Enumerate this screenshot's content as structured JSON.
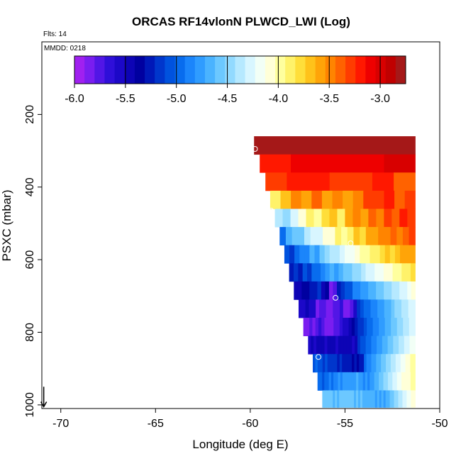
{
  "chart_data": {
    "type": "heatmap",
    "title": "ORCAS RF14vlonN PLWCD_LWI (Log)",
    "flights_label": "Flts: 14",
    "date_label": "MMDD: 0218",
    "xlabel": "Longitude (deg E)",
    "ylabel": "PSXC (mbar)",
    "xlim": [
      -71,
      -50
    ],
    "ylim": [
      1010,
      0
    ],
    "x_ticks": [
      -70,
      -65,
      -60,
      -55,
      -50
    ],
    "x_tick_labels": [
      "-70",
      "-65",
      "-60",
      "-55",
      "-50"
    ],
    "y_ticks": [
      200,
      400,
      600,
      800,
      1000
    ],
    "y_tick_labels": [
      "200",
      "400",
      "600",
      "800",
      "1000"
    ],
    "colorbar": {
      "range": [
        -6.0,
        -2.75
      ],
      "ticks": [
        -6.0,
        -5.5,
        -5.0,
        -4.5,
        -4.0,
        -3.5,
        -3.0
      ],
      "tick_labels": [
        "-6.0",
        "-5.5",
        "-5.0",
        "-4.5",
        "-4.0",
        "-3.5",
        "-3.0"
      ],
      "colors": [
        "#a020f0",
        "#7a1df0",
        "#5216e6",
        "#2f0fd9",
        "#1c08c8",
        "#0d04b5",
        "#0000a0",
        "#0018b8",
        "#0036cc",
        "#0052de",
        "#086cee",
        "#1b85fb",
        "#2f9cff",
        "#4ab3ff",
        "#6cc8ff",
        "#92daff",
        "#b6e9ff",
        "#d8f6ff",
        "#f2fff6",
        "#ffffd8",
        "#ffff9e",
        "#fff26a",
        "#ffde3a",
        "#ffc21a",
        "#ffa408",
        "#ff8400",
        "#ff6200",
        "#ff3c00",
        "#ff1800",
        "#ee0000",
        "#d80000",
        "#c00000",
        "#a51818"
      ]
    },
    "wedge": {
      "x_start": -51.3,
      "x_start_step": -0.75,
      "cell_width": 0.25,
      "levels": [
        {
          "p": 285,
          "x_end": -59.8,
          "values": [
            -2.8
          ]
        },
        {
          "p": 335,
          "x_end": -59.5,
          "values": [
            -3.15,
            -3.1,
            -3.05,
            -3.1,
            -3.0
          ]
        },
        {
          "p": 385,
          "x_end": -59.2,
          "values": [
            -3.25,
            -3.2,
            -3.15,
            -3.3,
            -3.25,
            -3.2,
            -3.35
          ]
        },
        {
          "p": 435,
          "x_end": -58.95,
          "values": [
            -3.85,
            -3.7,
            -3.5,
            -3.6,
            -3.4,
            -3.55,
            -3.45,
            -3.6,
            -3.5,
            -3.3,
            -3.25,
            -3.2,
            -3.35,
            -3.3
          ]
        },
        {
          "p": 485,
          "x_end": -58.7,
          "values": [
            -4.4,
            -4.5,
            -4.25,
            -4.1,
            -3.9,
            -3.95,
            -3.8,
            -3.7,
            -3.85,
            -3.6,
            -3.5,
            -3.55,
            -3.4,
            -3.45,
            -3.3,
            -3.35,
            -3.2,
            -3.25
          ]
        },
        {
          "p": 535,
          "x_end": -58.45,
          "values": [
            -5.0,
            -4.7,
            -4.6,
            -4.55,
            -4.35,
            -4.3,
            -4.25,
            -4.1,
            -4.05,
            -3.9,
            -3.95,
            -3.85,
            -3.7,
            -3.75,
            -3.6,
            -3.55,
            -3.5,
            -3.45,
            -3.4,
            -3.5,
            -3.35,
            -3.3
          ]
        },
        {
          "p": 585,
          "x_end": -58.2,
          "values": [
            -5.1,
            -5.2,
            -5.0,
            -4.9,
            -4.85,
            -4.7,
            -4.75,
            -4.55,
            -4.5,
            -4.4,
            -4.35,
            -4.25,
            -4.2,
            -4.15,
            -4.05,
            -4.0,
            -3.95,
            -3.9,
            -3.85,
            -3.8,
            -3.7,
            -3.75,
            -3.65,
            -3.6,
            -3.55,
            -3.6
          ]
        },
        {
          "p": 635,
          "x_end": -57.95,
          "values": [
            -5.3,
            -5.2,
            -5.25,
            -5.1,
            -5.15,
            -5.0,
            -4.95,
            -4.85,
            -4.8,
            -4.7,
            -4.75,
            -4.65,
            -4.6,
            -4.55,
            -4.5,
            -4.45,
            -4.35,
            -4.3,
            -4.25,
            -4.2,
            -4.15,
            -4.1,
            -4.05,
            -4.0,
            -3.95,
            -3.9,
            -3.85,
            -3.8
          ]
        },
        {
          "p": 685,
          "x_end": -57.7,
          "values": [
            -5.45,
            -5.5,
            -5.4,
            -5.35,
            -5.3,
            -5.25,
            -5.2,
            -5.5,
            -5.4,
            -5.9,
            -5.8,
            -5.3,
            -5.15,
            -5.1,
            -5.05,
            -4.9,
            -4.85,
            -4.8,
            -4.75,
            -4.7,
            -4.65,
            -4.6,
            -4.55,
            -4.5,
            -4.45,
            -4.4,
            -4.35,
            -4.3,
            -4.25,
            -4.2,
            -4.1
          ]
        },
        {
          "p": 735,
          "x_end": -57.45,
          "values": [
            -5.55,
            -5.6,
            -5.5,
            -5.55,
            -5.6,
            -5.85,
            -5.8,
            -5.75,
            -5.85,
            -5.9,
            -5.8,
            -5.75,
            -5.7,
            -5.9,
            -5.85,
            -5.75,
            -5.6,
            -5.2,
            -5.1,
            -5.0,
            -4.95,
            -4.9,
            -4.85,
            -4.8,
            -4.75,
            -4.7,
            -4.65,
            -4.6,
            -4.5,
            -4.45,
            -4.4,
            -4.35,
            -4.3,
            -4.25
          ]
        },
        {
          "p": 785,
          "x_end": -57.2,
          "values": [
            -5.85,
            -5.9,
            -5.8,
            -5.85,
            -5.75,
            -5.7,
            -5.8,
            -5.85,
            -5.9,
            -5.85,
            -5.8,
            -5.75,
            -5.7,
            -5.6,
            -5.55,
            -5.5,
            -5.4,
            -5.3,
            -5.2,
            -5.15,
            -5.1,
            -5.0,
            -4.95,
            -4.9,
            -4.85,
            -4.8,
            -4.75,
            -4.7,
            -4.65,
            -4.6,
            -4.55,
            -4.5,
            -4.45,
            -4.4,
            -4.35,
            -4.3,
            -4.25
          ]
        },
        {
          "p": 835,
          "x_end": -56.95,
          "values": [
            -5.55,
            -5.5,
            -5.55,
            -5.5,
            -5.45,
            -5.5,
            -5.55,
            -5.5,
            -5.45,
            -5.5,
            -5.55,
            -5.5,
            -5.45,
            -5.5,
            -5.45,
            -5.5,
            -5.55,
            -5.5,
            -5.2,
            -5.1,
            -5.05,
            -5.0,
            -4.95,
            -4.9,
            -4.85,
            -4.8,
            -4.75,
            -4.7,
            -4.65,
            -4.6,
            -4.55,
            -4.5,
            -4.45,
            -4.4,
            -4.35,
            -4.3,
            -4.25,
            -4.2,
            -4.15
          ]
        },
        {
          "p": 885,
          "x_end": -56.7,
          "values": [
            -5.05,
            -5.0,
            -5.05,
            -5.1,
            -5.15,
            -5.1,
            -5.15,
            -5.2,
            -5.15,
            -5.2,
            -5.25,
            -5.2,
            -5.25,
            -5.3,
            -5.25,
            -5.3,
            -5.35,
            -5.3,
            -5.35,
            -5.3,
            -5.25,
            -5.0,
            -4.9,
            -4.85,
            -4.8,
            -4.75,
            -4.7,
            -4.65,
            -4.6,
            -4.55,
            -4.5,
            -4.45,
            -4.4,
            -4.35,
            -4.3,
            -4.25,
            -4.2,
            -4.15,
            -4.1,
            -4.05,
            -4.0,
            -4.0
          ]
        },
        {
          "p": 935,
          "x_end": -56.45,
          "values": [
            -4.95,
            -5.0,
            -5.05,
            -5.0,
            -4.95,
            -4.9,
            -4.95,
            -4.9,
            -4.85,
            -4.8,
            -4.85,
            -4.8,
            -4.75,
            -4.8,
            -4.75,
            -4.8,
            -4.75,
            -4.7,
            -4.75,
            -4.8,
            -4.85,
            -4.8,
            -4.85,
            -4.8,
            -4.75,
            -4.7,
            -4.65,
            -4.6,
            -4.55,
            -4.5,
            -4.45,
            -4.4,
            -4.35,
            -4.3,
            -4.25,
            -4.2,
            -4.15,
            -4.1,
            -4.1,
            -4.05,
            -4.05,
            -4.0,
            -4.0
          ]
        },
        {
          "p": 985,
          "x_end": -56.2,
          "values": [
            -4.6,
            -4.55,
            -4.6,
            -4.55,
            -4.6,
            -4.65,
            -4.6,
            -4.65,
            -4.6,
            -4.55,
            -4.6,
            -4.55,
            -4.6,
            -4.55,
            -4.6,
            -4.65,
            -4.6,
            -4.65,
            -4.6,
            -4.65,
            -4.7,
            -4.65,
            -4.7,
            -4.65,
            -4.7,
            -4.75,
            -4.7,
            -4.75,
            -4.7,
            -4.75,
            -4.7,
            -4.65,
            -4.6,
            -4.55,
            -4.5,
            -4.45,
            -4.4,
            -4.35,
            -4.3,
            -4.25,
            -4.2,
            -4.15,
            -4.1,
            -4.05
          ]
        }
      ]
    },
    "markers": [
      {
        "x": -59.75,
        "y": 295
      },
      {
        "x": -58.9,
        "y": 465
      },
      {
        "x": -54.7,
        "y": 555
      },
      {
        "x": -55.5,
        "y": 705
      },
      {
        "x": -51.1,
        "y": 775
      },
      {
        "x": -56.4,
        "y": 868
      },
      {
        "x": -51.0,
        "y": 955
      },
      {
        "x": -57.0,
        "y": 995
      },
      {
        "x": -57.2,
        "y": 995
      },
      {
        "x": -57.4,
        "y": 998
      },
      {
        "x": -51.0,
        "y": 998
      }
    ],
    "arrow": {
      "x": -70.9,
      "y_from": 950,
      "y_to": 1005
    },
    "grid": false
  }
}
